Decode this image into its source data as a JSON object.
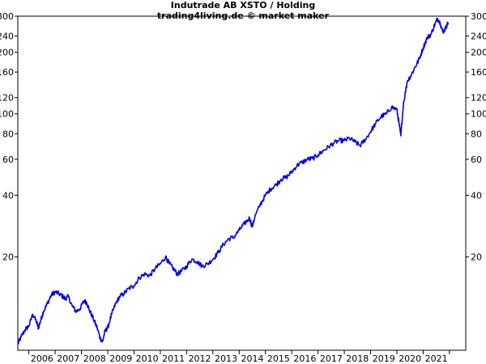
{
  "chart_data": {
    "type": "line",
    "title": "Indutrade AB XSTO / Holding",
    "subtitle": "trading4living.de © market maker",
    "xlabel": "",
    "ylabel": "",
    "y_scale": "log",
    "ylim": [
      7,
      300
    ],
    "xlim": [
      2005.58,
      2022.62
    ],
    "y_ticks": [
      20,
      40,
      60,
      80,
      100,
      120,
      160,
      200,
      240,
      300
    ],
    "x_ticks": [
      2006,
      2007,
      2008,
      2009,
      2010,
      2011,
      2012,
      2013,
      2014,
      2015,
      2016,
      2017,
      2018,
      2019,
      2020,
      2021
    ],
    "x_tick_labels": [
      "2006",
      "2007",
      "2008",
      "2009",
      "2010",
      "2011",
      "2012",
      "2013",
      "2014",
      "2015",
      "2016",
      "2017",
      "2018",
      "2019",
      "2020",
      "2021"
    ],
    "grid": false,
    "line_color": "#0000ee",
    "series": [
      {
        "name": "",
        "x": [
          2005.58,
          2005.7,
          2005.85,
          2006.0,
          2006.15,
          2006.3,
          2006.36,
          2006.45,
          2006.55,
          2006.7,
          2006.85,
          2007.0,
          2007.15,
          2007.3,
          2007.38,
          2007.5,
          2007.65,
          2007.8,
          2007.95,
          2008.1,
          2008.2,
          2008.3,
          2008.45,
          2008.6,
          2008.72,
          2008.8,
          2008.9,
          2009.0,
          2009.15,
          2009.3,
          2009.45,
          2009.6,
          2009.8,
          2010.0,
          2010.2,
          2010.4,
          2010.6,
          2010.8,
          2011.0,
          2011.2,
          2011.35,
          2011.5,
          2011.65,
          2011.8,
          2012.0,
          2012.2,
          2012.4,
          2012.6,
          2012.8,
          2013.0,
          2013.2,
          2013.4,
          2013.6,
          2013.8,
          2014.0,
          2014.2,
          2014.4,
          2014.5,
          2014.6,
          2014.8,
          2015.0,
          2015.2,
          2015.4,
          2015.6,
          2015.8,
          2016.0,
          2016.2,
          2016.4,
          2016.6,
          2016.8,
          2017.0,
          2017.2,
          2017.4,
          2017.6,
          2017.8,
          2018.0,
          2018.2,
          2018.4,
          2018.6,
          2018.8,
          2019.0,
          2019.2,
          2019.4,
          2019.6,
          2019.8,
          2020.0,
          2020.08,
          2020.15,
          2020.25,
          2020.4,
          2020.55,
          2020.7,
          2020.85,
          2021.0,
          2021.15,
          2021.3,
          2021.45,
          2021.55,
          2021.65,
          2021.75,
          2021.85,
          2021.95
        ],
        "values": [
          7.5,
          8.1,
          8.8,
          9.2,
          10.5,
          9.6,
          9.0,
          9.8,
          10.8,
          11.8,
          13.0,
          13.5,
          13.2,
          12.8,
          12.5,
          12.8,
          11.5,
          10.8,
          11.2,
          12.2,
          12.0,
          11.0,
          10.0,
          9.0,
          8.0,
          7.7,
          8.7,
          9.0,
          10.5,
          11.8,
          12.8,
          13.2,
          14.0,
          14.5,
          15.8,
          16.5,
          16.2,
          17.5,
          18.5,
          20.0,
          18.5,
          17.5,
          16.5,
          17.0,
          18.0,
          19.5,
          19.0,
          18.0,
          18.5,
          19.5,
          21.0,
          23.0,
          24.5,
          25.0,
          27.0,
          29.0,
          31.0,
          28.0,
          31.5,
          36.0,
          40.0,
          43.0,
          45.0,
          48.0,
          49.0,
          52.0,
          56.0,
          58.0,
          60.0,
          60.5,
          63.0,
          66.0,
          69.0,
          72.0,
          74.0,
          74.0,
          76.0,
          73.0,
          70.0,
          75.0,
          82.0,
          90.0,
          97.0,
          100.0,
          108.0,
          105.0,
          90.0,
          78.0,
          112.0,
          145.0,
          155.0,
          170.0,
          185.0,
          210.0,
          235.0,
          245.0,
          275.0,
          292.0,
          278.0,
          250.0,
          262.0,
          280.0
        ]
      }
    ]
  }
}
